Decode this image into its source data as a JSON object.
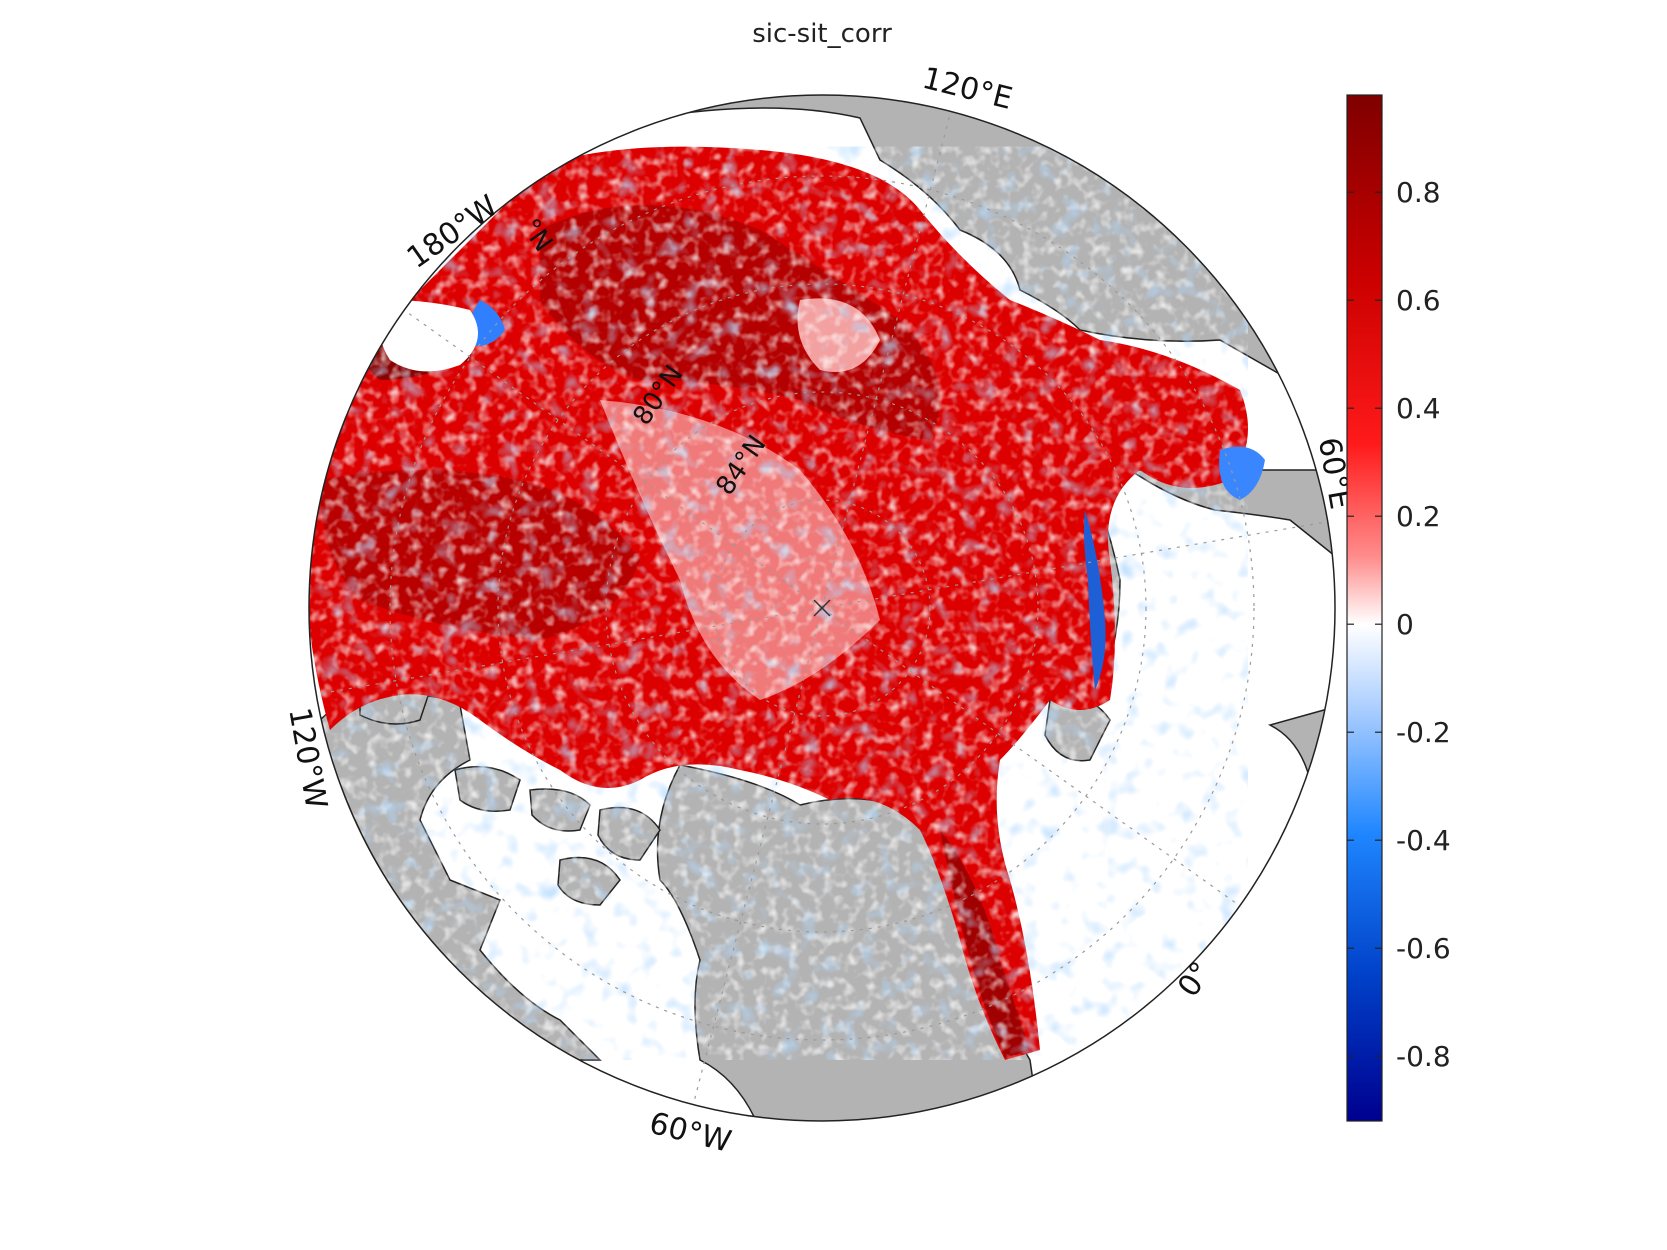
{
  "figure": {
    "title": "sic-sit_corr"
  },
  "map": {
    "projection": "north-polar-stereographic",
    "longitude_labels": [
      "120°E",
      "180°W",
      "120°W",
      "60°W",
      "0°",
      "60°E"
    ],
    "latitude_labels": [
      "°N",
      "80°N",
      "84°N"
    ],
    "grid": "dotted",
    "land_color": "#b3b3b3",
    "missing_color": "#ffffff"
  },
  "colorbar": {
    "position": "right",
    "colormap": "blue-white-red",
    "range": [
      -0.92,
      0.98
    ],
    "ticks": [
      0.8,
      0.6,
      0.4,
      0.2,
      0,
      -0.2,
      -0.4,
      -0.6,
      -0.8
    ],
    "tick_labels": [
      "0.8",
      "0.6",
      "0.4",
      "0.2",
      "0",
      "-0.2",
      "-0.4",
      "-0.6",
      "-0.8"
    ],
    "colors": {
      "max": "#7f0000",
      "high": "#ff0000",
      "zero": "#ffffff",
      "low": "#0070ff",
      "min": "#00008f"
    }
  }
}
